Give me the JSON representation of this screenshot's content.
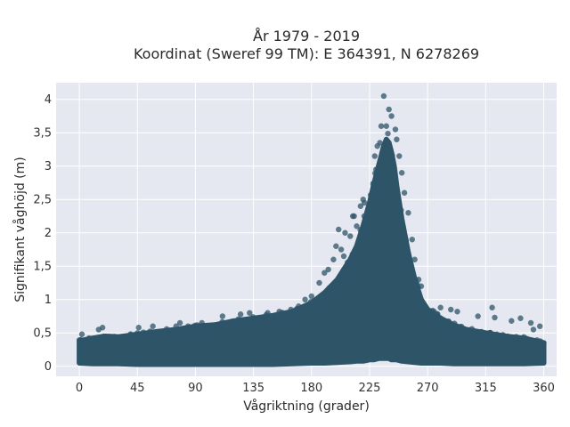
{
  "chart_data": {
    "type": "scatter",
    "title": "År 1979 - 2019",
    "subtitle": "Koordinat (Sweref 99 TM): E 364391, N 6278269",
    "xlabel": "Vågriktning (grader)",
    "ylabel": "Signifikant våghöjd (m)",
    "xlim": [
      -18,
      370
    ],
    "ylim": [
      -0.15,
      4.25
    ],
    "x_ticks": [
      0,
      45,
      90,
      135,
      180,
      225,
      270,
      315,
      360
    ],
    "x_tick_labels": [
      "0",
      "45",
      "90",
      "135",
      "180",
      "225",
      "270",
      "315",
      "360"
    ],
    "y_ticks": [
      0,
      0.5,
      1,
      1.5,
      2,
      2.5,
      3,
      3.5,
      4
    ],
    "y_tick_labels": [
      "0",
      "0,5",
      "1",
      "1,5",
      "2",
      "2,5",
      "3",
      "3,5",
      "4"
    ],
    "grid": true,
    "marker_color": "#2e5468",
    "background_color": "#e5e8f0",
    "envelope": {
      "x": [
        0,
        10,
        20,
        30,
        45,
        60,
        75,
        90,
        105,
        120,
        135,
        150,
        165,
        180,
        190,
        200,
        210,
        215,
        220,
        225,
        228,
        232,
        236,
        238,
        240,
        242,
        244,
        246,
        250,
        255,
        260,
        265,
        270,
        280,
        290,
        300,
        315,
        330,
        345,
        360
      ],
      "upper": [
        0.38,
        0.42,
        0.45,
        0.44,
        0.48,
        0.52,
        0.55,
        0.6,
        0.62,
        0.68,
        0.72,
        0.76,
        0.82,
        0.95,
        1.1,
        1.3,
        1.6,
        1.8,
        2.1,
        2.45,
        2.7,
        3.0,
        3.3,
        3.4,
        3.35,
        3.2,
        3.0,
        2.7,
        2.2,
        1.7,
        1.3,
        1.0,
        0.85,
        0.72,
        0.62,
        0.55,
        0.5,
        0.45,
        0.42,
        0.35
      ],
      "lower": [
        0.05,
        0.04,
        0.04,
        0.04,
        0.03,
        0.03,
        0.03,
        0.03,
        0.03,
        0.03,
        0.03,
        0.03,
        0.04,
        0.05,
        0.05,
        0.06,
        0.07,
        0.08,
        0.08,
        0.1,
        0.1,
        0.12,
        0.12,
        0.12,
        0.12,
        0.1,
        0.1,
        0.1,
        0.08,
        0.07,
        0.06,
        0.05,
        0.05,
        0.05,
        0.04,
        0.04,
        0.04,
        0.04,
        0.04,
        0.05
      ]
    },
    "outliers": [
      {
        "x": 236,
        "y": 4.05
      },
      {
        "x": 240,
        "y": 3.85
      },
      {
        "x": 242,
        "y": 3.75
      },
      {
        "x": 245,
        "y": 3.55
      },
      {
        "x": 234,
        "y": 3.6
      },
      {
        "x": 238,
        "y": 3.6
      },
      {
        "x": 233,
        "y": 3.35
      },
      {
        "x": 246,
        "y": 3.4
      },
      {
        "x": 231,
        "y": 3.3
      },
      {
        "x": 248,
        "y": 3.15
      },
      {
        "x": 229,
        "y": 3.15
      },
      {
        "x": 230,
        "y": 2.95
      },
      {
        "x": 250,
        "y": 2.9
      },
      {
        "x": 228,
        "y": 2.7
      },
      {
        "x": 252,
        "y": 2.6
      },
      {
        "x": 220,
        "y": 2.5
      },
      {
        "x": 221,
        "y": 2.45
      },
      {
        "x": 218,
        "y": 2.4
      },
      {
        "x": 222,
        "y": 2.2
      },
      {
        "x": 255,
        "y": 2.3
      },
      {
        "x": 213,
        "y": 2.25
      },
      {
        "x": 212,
        "y": 2.25
      },
      {
        "x": 215,
        "y": 2.1
      },
      {
        "x": 201,
        "y": 2.05
      },
      {
        "x": 206,
        "y": 2.0
      },
      {
        "x": 210,
        "y": 1.95
      },
      {
        "x": 199,
        "y": 1.8
      },
      {
        "x": 203,
        "y": 1.75
      },
      {
        "x": 205,
        "y": 1.65
      },
      {
        "x": 197,
        "y": 1.6
      },
      {
        "x": 258,
        "y": 1.9
      },
      {
        "x": 260,
        "y": 1.6
      },
      {
        "x": 263,
        "y": 1.3
      },
      {
        "x": 265,
        "y": 1.2
      },
      {
        "x": 190,
        "y": 1.4
      },
      {
        "x": 186,
        "y": 1.25
      },
      {
        "x": 193,
        "y": 1.45
      },
      {
        "x": 180,
        "y": 1.05
      },
      {
        "x": 175,
        "y": 1.0
      },
      {
        "x": 170,
        "y": 0.9
      },
      {
        "x": 164,
        "y": 0.85
      },
      {
        "x": 155,
        "y": 0.82
      },
      {
        "x": 146,
        "y": 0.8
      },
      {
        "x": 125,
        "y": 0.78
      },
      {
        "x": 132,
        "y": 0.8
      },
      {
        "x": 111,
        "y": 0.75
      },
      {
        "x": 95,
        "y": 0.65
      },
      {
        "x": 78,
        "y": 0.65
      },
      {
        "x": 75,
        "y": 0.6
      },
      {
        "x": 57,
        "y": 0.6
      },
      {
        "x": 46,
        "y": 0.58
      },
      {
        "x": 18,
        "y": 0.58
      },
      {
        "x": 15,
        "y": 0.55
      },
      {
        "x": 2,
        "y": 0.48
      },
      {
        "x": 280,
        "y": 0.88
      },
      {
        "x": 275,
        "y": 0.82
      },
      {
        "x": 288,
        "y": 0.85
      },
      {
        "x": 293,
        "y": 0.82
      },
      {
        "x": 309,
        "y": 0.75
      },
      {
        "x": 322,
        "y": 0.73
      },
      {
        "x": 320,
        "y": 0.88
      },
      {
        "x": 335,
        "y": 0.68
      },
      {
        "x": 342,
        "y": 0.72
      },
      {
        "x": 350,
        "y": 0.65
      },
      {
        "x": 352,
        "y": 0.55
      },
      {
        "x": 357,
        "y": 0.6
      },
      {
        "x": 360,
        "y": 0.35
      }
    ]
  }
}
